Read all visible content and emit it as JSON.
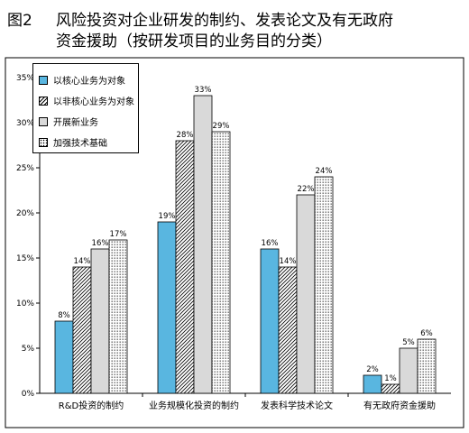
{
  "figure": {
    "number": "图2",
    "title_line1": "风险投资对企业研发的制约、发表论文及有无政府",
    "title_line2": "资金援助（按研发项目的业务目的分类）"
  },
  "chart_data": {
    "type": "bar",
    "categories": [
      "R&D投资的制约",
      "业务规模化投资的制约",
      "发表科学技术论文",
      "有无政府资金援助"
    ],
    "series": [
      {
        "name": "以核心业务为对象",
        "values": [
          8,
          19,
          16,
          2
        ],
        "labels": [
          "8%",
          "19%",
          "16%",
          "2%"
        ],
        "fill": "solid",
        "color": "#59b6e0"
      },
      {
        "name": "以非核心业务为对象",
        "values": [
          14,
          28,
          14,
          1
        ],
        "labels": [
          "14%",
          "28%",
          "14%",
          "1%"
        ],
        "fill": "diagonal-hatch",
        "color": "#ffffff"
      },
      {
        "name": "开展新业务",
        "values": [
          16,
          33,
          22,
          5
        ],
        "labels": [
          "16%",
          "33%",
          "22%",
          "5%"
        ],
        "fill": "solid",
        "color": "#d9d9d9"
      },
      {
        "name": "加强技术基础",
        "values": [
          17,
          29,
          24,
          6
        ],
        "labels": [
          "17%",
          "29%",
          "24%",
          "6%"
        ],
        "fill": "dotted",
        "color": "#ffffff"
      }
    ],
    "y_ticks": [
      "0%",
      "5%",
      "10%",
      "15%",
      "20%",
      "25%",
      "30%",
      "35%"
    ],
    "ylim": [
      0,
      35
    ],
    "legend_position": "top-left",
    "grid": false
  }
}
